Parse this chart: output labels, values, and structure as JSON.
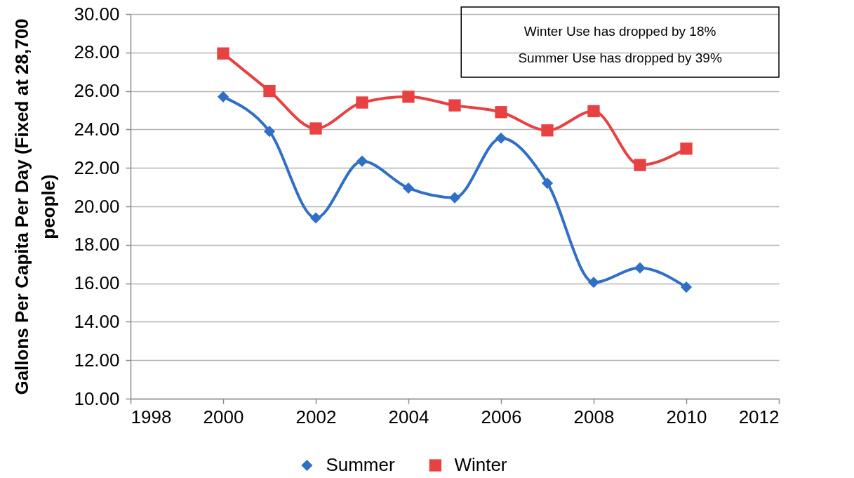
{
  "chart_data": {
    "type": "line",
    "ylabel": "Gallons Per Capita Per Day (Fixed at 28,700 people)",
    "x": [
      2000,
      2001,
      2002,
      2003,
      2004,
      2005,
      2006,
      2007,
      2008,
      2009,
      2010
    ],
    "series": [
      {
        "name": "Summer",
        "color": "#2f6fc6",
        "marker": "diamond",
        "values": [
          25.7,
          23.9,
          19.4,
          22.35,
          20.95,
          20.45,
          23.55,
          21.2,
          16.05,
          16.8,
          15.8
        ]
      },
      {
        "name": "Winter",
        "color": "#e84142",
        "marker": "square",
        "values": [
          27.95,
          26.0,
          24.05,
          25.4,
          25.7,
          25.25,
          24.9,
          23.95,
          24.95,
          22.15,
          23.0
        ]
      }
    ],
    "xlim": [
      1998,
      2012
    ],
    "xticks": [
      1998,
      2000,
      2002,
      2004,
      2006,
      2008,
      2010,
      2012
    ],
    "ylim": [
      10,
      30
    ],
    "yticks": [
      {
        "value": 10,
        "label": "10.00"
      },
      {
        "value": 12,
        "label": "12.00"
      },
      {
        "value": 14,
        "label": "14.00"
      },
      {
        "value": 16,
        "label": "16.00"
      },
      {
        "value": 18,
        "label": "18.00"
      },
      {
        "value": 20,
        "label": "20.00"
      },
      {
        "value": 22,
        "label": "22.00"
      },
      {
        "value": 24,
        "label": "24.00"
      },
      {
        "value": 26,
        "label": "26.00"
      },
      {
        "value": 28,
        "label": "28.00"
      },
      {
        "value": 30,
        "label": "30.00"
      }
    ],
    "grid": "y",
    "legend": "bottom",
    "line_style": "solid",
    "annotations": [
      "Winter Use has dropped by 18%",
      "Summer Use has dropped by 39%"
    ]
  }
}
